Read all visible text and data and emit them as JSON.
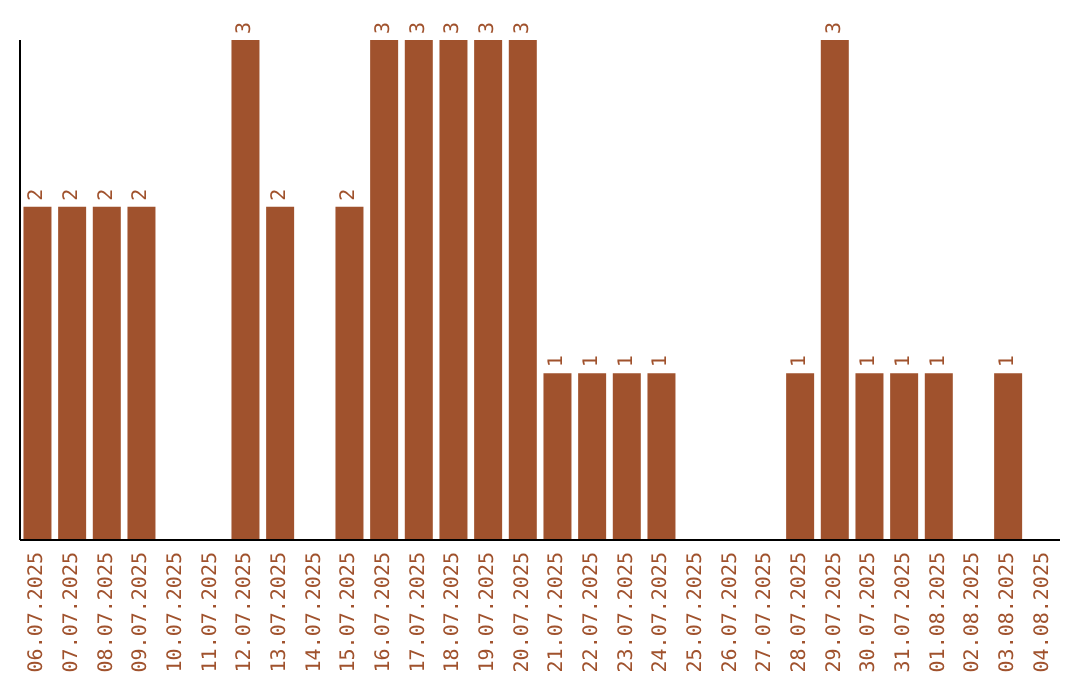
{
  "chart_data": {
    "type": "bar",
    "categories": [
      "06.07.2025",
      "07.07.2025",
      "08.07.2025",
      "09.07.2025",
      "10.07.2025",
      "11.07.2025",
      "12.07.2025",
      "13.07.2025",
      "14.07.2025",
      "15.07.2025",
      "16.07.2025",
      "17.07.2025",
      "18.07.2025",
      "19.07.2025",
      "20.07.2025",
      "21.07.2025",
      "22.07.2025",
      "23.07.2025",
      "24.07.2025",
      "25.07.2025",
      "26.07.2025",
      "27.07.2025",
      "28.07.2025",
      "29.07.2025",
      "30.07.2025",
      "31.07.2025",
      "01.08.2025",
      "02.08.2025",
      "03.08.2025",
      "04.08.2025"
    ],
    "values": [
      2,
      2,
      2,
      2,
      0,
      0,
      3,
      2,
      0,
      2,
      3,
      3,
      3,
      3,
      3,
      1,
      1,
      1,
      1,
      0,
      0,
      0,
      1,
      3,
      1,
      1,
      1,
      0,
      1,
      0
    ],
    "value_labels": [
      "2",
      "2",
      "2",
      "2",
      null,
      null,
      "3",
      "2",
      null,
      "2",
      "3",
      "3",
      "3",
      "3",
      "3",
      "1",
      "1",
      "1",
      "1",
      null,
      null,
      null,
      "1",
      "3",
      "1",
      "1",
      "1",
      null,
      "1",
      null
    ],
    "color": "#a0522d",
    "grid": false,
    "legend": false
  }
}
